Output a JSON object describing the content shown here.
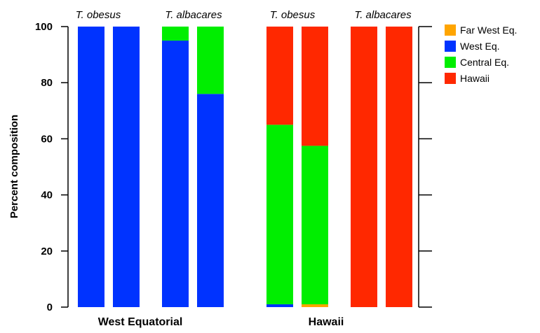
{
  "chart_data": {
    "type": "bar",
    "stacked": true,
    "ylabel": "Percent composition",
    "ylim": [
      0,
      100
    ],
    "yticks": [
      0,
      20,
      40,
      60,
      80,
      100
    ],
    "series_colors": {
      "Far West Eq.": "#FFA500",
      "West Eq.": "#0033FF",
      "Central Eq.": "#00EE00",
      "Hawaii": "#FF2800"
    },
    "legend": {
      "placement": "top-right",
      "entries": [
        "Far West Eq.",
        "West Eq.",
        "Central Eq.",
        "Hawaii"
      ]
    },
    "panels": [
      {
        "label": "West Equatorial",
        "species_labels": [
          "T. obesus",
          "T. albacares"
        ],
        "bars": [
          {
            "species": "T. obesus",
            "segments": {
              "Far West Eq.": 0,
              "West Eq.": 100,
              "Central Eq.": 0,
              "Hawaii": 0
            }
          },
          {
            "species": "T. obesus",
            "segments": {
              "Far West Eq.": 0,
              "West Eq.": 100,
              "Central Eq.": 0,
              "Hawaii": 0
            }
          },
          {
            "species": "T. albacares",
            "segments": {
              "Far West Eq.": 0,
              "West Eq.": 95,
              "Central Eq.": 5,
              "Hawaii": 0
            }
          },
          {
            "species": "T. albacares",
            "segments": {
              "Far West Eq.": 0,
              "West Eq.": 76,
              "Central Eq.": 24,
              "Hawaii": 0
            }
          }
        ]
      },
      {
        "label": "Hawaii",
        "species_labels": [
          "T. obesus",
          "T. albacares"
        ],
        "bars": [
          {
            "species": "T. obesus",
            "segments": {
              "Far West Eq.": 0,
              "West Eq.": 1,
              "Central Eq.": 64,
              "Hawaii": 35
            }
          },
          {
            "species": "T. obesus",
            "segments": {
              "Far West Eq.": 1,
              "West Eq.": 0,
              "Central Eq.": 56.5,
              "Hawaii": 42.5
            }
          },
          {
            "species": "T. albacares",
            "segments": {
              "Far West Eq.": 0,
              "West Eq.": 0,
              "Central Eq.": 0,
              "Hawaii": 100
            }
          },
          {
            "species": "T. albacares",
            "segments": {
              "Far West Eq.": 0,
              "West Eq.": 0,
              "Central Eq.": 0,
              "Hawaii": 100
            }
          }
        ]
      }
    ]
  }
}
